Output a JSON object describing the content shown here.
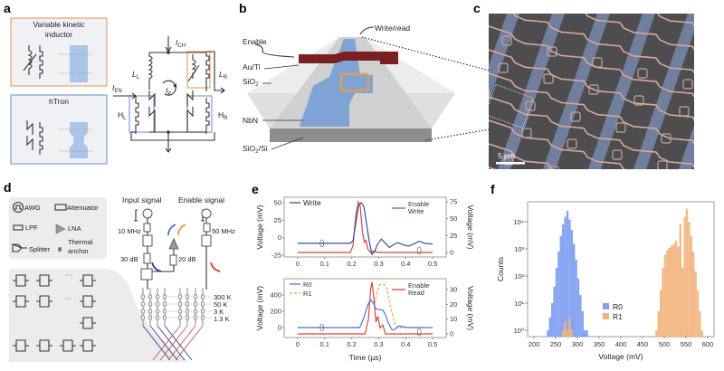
{
  "panels": {
    "a": "a",
    "b": "b",
    "c": "c",
    "d": "d",
    "e": "e",
    "f": "f"
  },
  "a": {
    "vki_title_1": "Variable kinetic",
    "vki_title_2": "inductor",
    "htron_title": "hTron",
    "I_CH": {
      "main": "I",
      "sub": "CH"
    },
    "I_EN": {
      "main": "I",
      "sub": "EN"
    },
    "I_P": {
      "main": "I",
      "sub": "P"
    },
    "L_L": {
      "main": "L",
      "sub": "L"
    },
    "L_R": {
      "main": "L",
      "sub": "R"
    },
    "H_L": {
      "main": "H",
      "sub": "L"
    },
    "H_R": {
      "main": "H",
      "sub": "R"
    },
    "colors": {
      "vki": "#e8a46a",
      "htron": "#7d9fd8",
      "nbn": "#a9c6ea",
      "dashed": "#d9827a"
    }
  },
  "b": {
    "write_read": "Write/read",
    "enable": "Enable",
    "au_ti": "Au/Ti",
    "sio2": {
      "main": "SiO",
      "sub": "2"
    },
    "nbn": "NbN",
    "substrate": {
      "main": "SiO",
      "sub": "2",
      "rest": "/Si"
    }
  },
  "c": {
    "scale_bar": "5 µm"
  },
  "d": {
    "legend": {
      "awg": "AWG",
      "attenuator": "Attenuator",
      "lpf": "LPF",
      "lna": "LNA",
      "splitter": "Splitter",
      "thermal_1": "Thermal",
      "thermal_2": "anchor"
    },
    "input_signal": "Input signal",
    "enable_signal": "Enable signal",
    "f_input": "10 MHz",
    "f_enable": "50 MHz",
    "att_input": "30 dB",
    "att_lna": "20 dB",
    "stages": [
      "300 K",
      "50 K",
      "3 K",
      "1.3 K"
    ],
    "chip_ellipsis": "···"
  },
  "chart_data": [
    {
      "id": "e-top",
      "type": "line",
      "xlabel": "",
      "xlim": [
        -0.05,
        0.55
      ],
      "xticks": [
        0,
        0.1,
        0.2,
        0.3,
        0.4,
        0.5
      ],
      "ylabel_left": "Voltage (mV)",
      "ylabel_right": "Voltage (mV)",
      "yticks_left": [
        -25,
        0,
        25,
        50
      ],
      "yticks_right": [
        0,
        25,
        50,
        75
      ],
      "series": [
        {
          "name": "Write",
          "axis": "left",
          "color": "#3a4f9a",
          "style": "solid",
          "points": [
            [
              0,
              -8
            ],
            [
              0.05,
              -8
            ],
            [
              0.1,
              -8
            ],
            [
              0.15,
              -8
            ],
            [
              0.195,
              -8
            ],
            [
              0.205,
              -4
            ],
            [
              0.215,
              20
            ],
            [
              0.225,
              45
            ],
            [
              0.235,
              50
            ],
            [
              0.245,
              45
            ],
            [
              0.255,
              20
            ],
            [
              0.265,
              -5
            ],
            [
              0.275,
              -24
            ],
            [
              0.285,
              -20
            ],
            [
              0.295,
              -10
            ],
            [
              0.31,
              -2
            ],
            [
              0.325,
              -8
            ],
            [
              0.34,
              -14
            ],
            [
              0.355,
              -10
            ],
            [
              0.37,
              -7
            ],
            [
              0.39,
              -10
            ],
            [
              0.41,
              -12
            ],
            [
              0.43,
              -9
            ],
            [
              0.45,
              -5
            ],
            [
              0.47,
              -8
            ],
            [
              0.5,
              -9
            ]
          ]
        },
        {
          "name": "Enable\nWrite",
          "name_lines": [
            "Enable",
            "Write"
          ],
          "axis": "right",
          "color": "#d9453f",
          "style": "solid",
          "points": [
            [
              0,
              0
            ],
            [
              0.195,
              0
            ],
            [
              0.205,
              10
            ],
            [
              0.215,
              55
            ],
            [
              0.225,
              75
            ],
            [
              0.232,
              68
            ],
            [
              0.24,
              30
            ],
            [
              0.247,
              15
            ],
            [
              0.253,
              18
            ],
            [
              0.26,
              5
            ],
            [
              0.27,
              0
            ],
            [
              0.28,
              2
            ],
            [
              0.3,
              0
            ],
            [
              0.5,
              0
            ]
          ]
        }
      ]
    },
    {
      "id": "e-bottom",
      "type": "line",
      "xlabel": "Time (µs)",
      "xlim": [
        -0.05,
        0.55
      ],
      "xticks": [
        0,
        0.1,
        0.2,
        0.3,
        0.4,
        0.5
      ],
      "ylabel_left": "Voltage (mV)",
      "ylabel_right": "Voltage (mV)",
      "yticks_left": [
        0,
        200,
        400
      ],
      "yticks_right": [
        0,
        10,
        20,
        30
      ],
      "series": [
        {
          "name": "R0",
          "axis": "left",
          "color": "#4f78d8",
          "style": "solid",
          "points": [
            [
              0,
              0
            ],
            [
              0.23,
              0
            ],
            [
              0.245,
              120
            ],
            [
              0.26,
              280
            ],
            [
              0.27,
              340
            ],
            [
              0.28,
              300
            ],
            [
              0.29,
              230
            ],
            [
              0.3,
              220
            ],
            [
              0.315,
              215
            ],
            [
              0.325,
              160
            ],
            [
              0.335,
              60
            ],
            [
              0.35,
              -30
            ],
            [
              0.36,
              -20
            ],
            [
              0.375,
              20
            ],
            [
              0.39,
              10
            ],
            [
              0.41,
              0
            ],
            [
              0.5,
              0
            ]
          ]
        },
        {
          "name": "R1",
          "axis": "left",
          "color": "#e8a040",
          "style": "dashed",
          "points": [
            [
              0,
              0
            ],
            [
              0.23,
              0
            ],
            [
              0.245,
              120
            ],
            [
              0.26,
              280
            ],
            [
              0.27,
              340
            ],
            [
              0.285,
              280
            ],
            [
              0.295,
              450
            ],
            [
              0.305,
              530
            ],
            [
              0.32,
              530
            ],
            [
              0.33,
              480
            ],
            [
              0.345,
              250
            ],
            [
              0.36,
              50
            ],
            [
              0.37,
              -10
            ],
            [
              0.38,
              0
            ],
            [
              0.5,
              0
            ]
          ]
        },
        {
          "name": "Enable\nRead",
          "name_lines": [
            "Enable",
            "Read"
          ],
          "axis": "right",
          "color": "#d9453f",
          "style": "solid",
          "points": [
            [
              0,
              0
            ],
            [
              0.25,
              0
            ],
            [
              0.262,
              10
            ],
            [
              0.27,
              30
            ],
            [
              0.275,
              35
            ],
            [
              0.282,
              25
            ],
            [
              0.29,
              8
            ],
            [
              0.297,
              12
            ],
            [
              0.305,
              4
            ],
            [
              0.315,
              6
            ],
            [
              0.325,
              0
            ],
            [
              0.5,
              0
            ]
          ]
        }
      ]
    },
    {
      "id": "f",
      "type": "bar",
      "xlabel": "Voltage (mV)",
      "ylabel": "Counts",
      "xlim": [
        185,
        610
      ],
      "xticks": [
        200,
        250,
        300,
        350,
        400,
        450,
        500,
        550,
        600
      ],
      "yscale": "log",
      "yticks": [
        "10⁰",
        "10¹",
        "10²",
        "10³",
        "10⁴"
      ],
      "ytick_exponents": [
        0,
        1,
        2,
        3,
        4
      ],
      "bin_width": 5,
      "legend_position": "bottom-center",
      "series": [
        {
          "name": "R0",
          "color": "#7f9ff0",
          "bins": [
            232,
            237,
            242,
            247,
            252,
            257,
            262,
            267,
            272,
            277,
            282,
            287,
            292,
            297,
            302,
            307,
            312,
            317,
            322
          ],
          "counts": [
            1,
            3,
            10,
            40,
            200,
            800,
            3000,
            8000,
            15000,
            25000,
            12000,
            5000,
            1500,
            400,
            80,
            20,
            5,
            1,
            1
          ]
        },
        {
          "name": "R1",
          "color": "#f2b27a",
          "bins": [
            267,
            272,
            277,
            282,
            287,
            482,
            487,
            492,
            497,
            502,
            507,
            512,
            517,
            522,
            527,
            532,
            537,
            542,
            547,
            552,
            557,
            562,
            567,
            572,
            577,
            582,
            587
          ],
          "counts": [
            1,
            2,
            1,
            3,
            1,
            1,
            5,
            30,
            200,
            600,
            900,
            1100,
            1300,
            1500,
            2000,
            1200,
            8000,
            200,
            15000,
            30000,
            10000,
            3000,
            800,
            150,
            30,
            5,
            1
          ]
        }
      ]
    }
  ]
}
